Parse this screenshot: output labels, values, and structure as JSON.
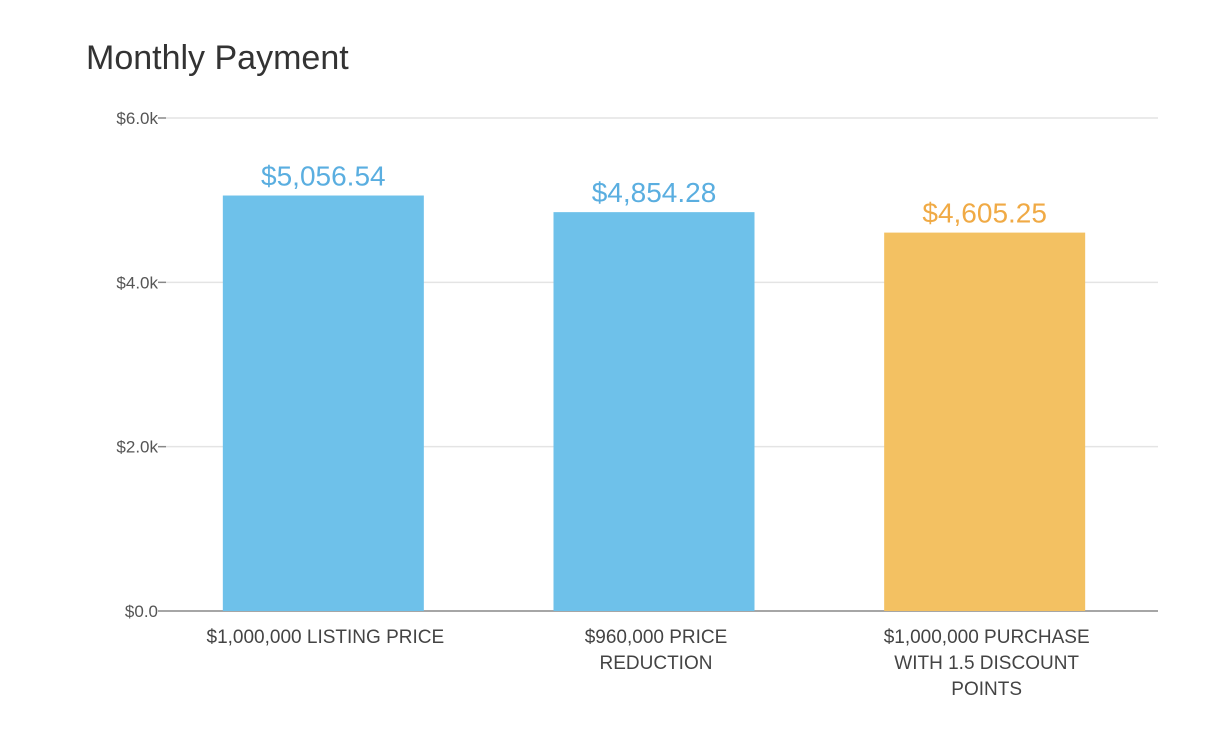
{
  "chart_data": {
    "type": "bar",
    "title": "Monthly Payment",
    "xlabel": "",
    "ylabel": "",
    "ylim": [
      0,
      6000
    ],
    "yticks": [
      0,
      2000,
      4000,
      6000
    ],
    "ytick_labels": [
      "$0.0",
      "$2.0k",
      "$4.0k",
      "$6.0k"
    ],
    "grid": true,
    "categories": [
      [
        "$1,000,000 LISTING PRICE"
      ],
      [
        "$960,000 PRICE",
        "REDUCTION"
      ],
      [
        "$1,000,000 PURCHASE",
        "WITH 1.5 DISCOUNT",
        "POINTS"
      ]
    ],
    "values": [
      5056.54,
      4854.28,
      4605.25
    ],
    "data_labels": [
      "$5,056.54",
      "$4,854.28",
      "$4,605.25"
    ],
    "bar_colors": [
      "#6ec1ea",
      "#6ec1ea",
      "#f3c162"
    ],
    "label_colors": [
      "#5aaee0",
      "#5aaee0",
      "#f0aa45"
    ]
  }
}
